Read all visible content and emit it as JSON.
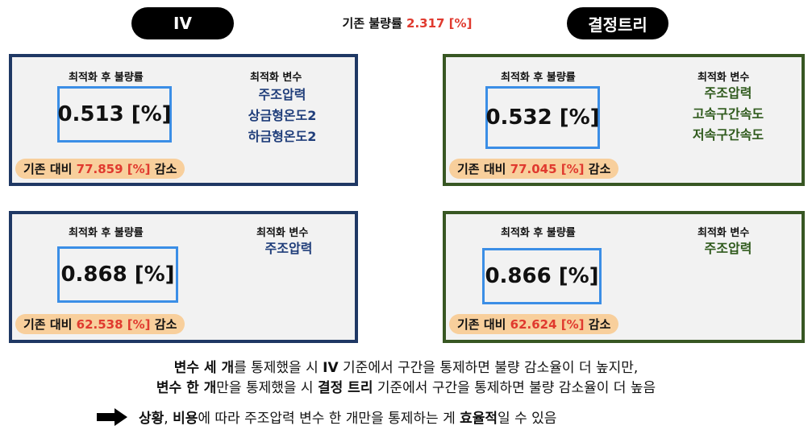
{
  "header": {
    "left_pill": "IV",
    "right_pill": "결정트리",
    "baseline_label": "기존  불량률",
    "baseline_value": "2.317 [%]"
  },
  "cards": {
    "iv_three": {
      "after_label": "최적화 후 불량률",
      "value": "0.513 [%]",
      "vars_label": "최적화 변수",
      "vars": [
        "주조압력",
        "상금형온도2",
        "하금형온도2"
      ],
      "reduction_prefix": "기존 대비",
      "reduction_value": "77.859 [%]",
      "reduction_suffix": "감소"
    },
    "tree_three": {
      "after_label": "최적화 후 불량률",
      "value": "0.532 [%]",
      "vars_label": "최적화 변수",
      "vars": [
        "주조압력",
        "고속구간속도",
        "저속구간속도"
      ],
      "reduction_prefix": "기존 대비",
      "reduction_value": "77.045 [%]",
      "reduction_suffix": "감소"
    },
    "iv_one": {
      "after_label": "최적화 후 불량률",
      "value": "0.868 [%]",
      "vars_label": "최적화 변수",
      "vars": [
        "주조압력"
      ],
      "reduction_prefix": "기존 대비",
      "reduction_value": "62.538 [%]",
      "reduction_suffix": "감소"
    },
    "tree_one": {
      "after_label": "최적화 후 불량률",
      "value": "0.866 [%]",
      "vars_label": "최적화 변수",
      "vars": [
        "주조압력"
      ],
      "reduction_prefix": "기존 대비",
      "reduction_value": "62.624 [%]",
      "reduction_suffix": "감소"
    }
  },
  "summary": {
    "line1_b1": "변수 세 개",
    "line1_t1": "를 통제했을 시 ",
    "line1_b2": "IV",
    "line1_t2": " 기준에서 구간을 통제하면 불량 감소율이 더 높지만,",
    "line2_b1": "변수 한 개",
    "line2_t1": "만을 통제했을 시 ",
    "line2_b2": "결정 트리",
    "line2_t2": " 기준에서 구간을 통제하면 불량 감소율이 더 높음",
    "line3_b1": "상황",
    "line3_t1": ", ",
    "line3_b2": "비용",
    "line3_t2": "에 따라 주조압력 변수 한 개만을 통제하는 게 ",
    "line3_b3": "효율적",
    "line3_t3": "일 수 있음"
  },
  "icons": {
    "conclusion": "right-arrow-icon"
  },
  "colors": {
    "iv_border": "#1f3864",
    "tree_border": "#385723",
    "value_box": "#3b8ee6",
    "highlight": "#f8cf9c",
    "red": "#e03a2f"
  }
}
